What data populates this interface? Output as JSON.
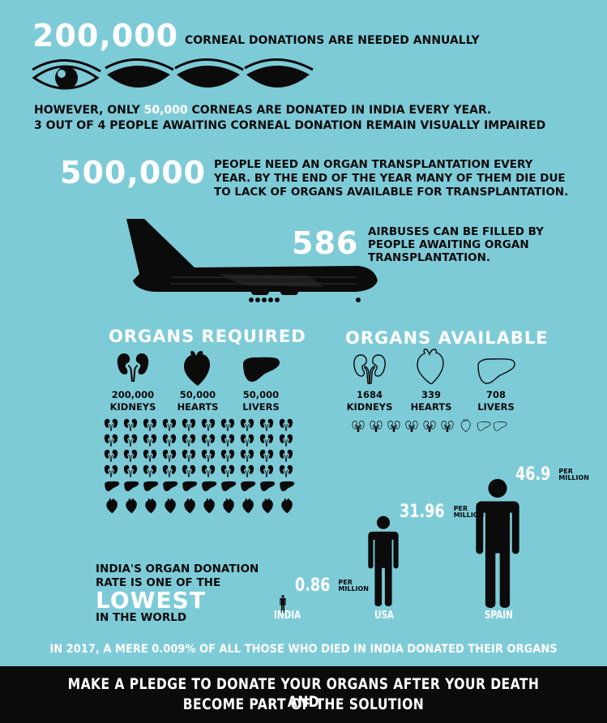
{
  "cornea": {
    "number": "200,000",
    "caption": "CORNEAL DONATIONS ARE NEEDED ANNUALLY",
    "donated_prefix": "HOWEVER, ONLY ",
    "donated_number": "50,000",
    "donated_suffix": " CORNEAS ARE DONATED IN INDIA EVERY YEAR.",
    "impaired": "3 OUT OF 4 PEOPLE AWAITING CORNEAL DONATION REMAIN VISUALLY IMPAIRED"
  },
  "transplant": {
    "number": "500,000",
    "line1": "PEOPLE NEED AN ORGAN TRANSPLANTATION EVERY",
    "line2": "YEAR. BY THE END OF THE YEAR MANY OF THEM DIE DUE",
    "line3": "TO LACK OF ORGANS AVAILABLE FOR TRANSPLANTATION."
  },
  "airbus": {
    "number": "586",
    "line1": "AIRBUSES CAN BE FILLED BY",
    "line2": "PEOPLE AWAITING ORGAN",
    "line3": "TRANSPLANTATION."
  },
  "required": {
    "title": "ORGANS REQUIRED",
    "items": [
      {
        "number": "200,000",
        "label": "KIDNEYS",
        "icon": "kidneys-icon"
      },
      {
        "number": "50,000",
        "label": "HEARTS",
        "icon": "heart-icon"
      },
      {
        "number": "50,000",
        "label": "LIVERS",
        "icon": "liver-icon"
      }
    ]
  },
  "available": {
    "title": "ORGANS AVAILABLE",
    "items": [
      {
        "number": "1684",
        "label": "KIDNEYS",
        "icon": "kidneys-icon"
      },
      {
        "number": "339",
        "label": "HEARTS",
        "icon": "heart-icon"
      },
      {
        "number": "708",
        "label": "LIVERS",
        "icon": "liver-icon"
      }
    ]
  },
  "rate": {
    "line1": "INDIA'S ORGAN DONATION",
    "line2": "RATE IS ONE OF THE",
    "highlight": "LOWEST",
    "line3": "IN THE WORLD",
    "per_top": "PER",
    "per_bottom": "MILLION",
    "countries": [
      {
        "name": "INDIA",
        "value": "0.86",
        "rate": 0.86
      },
      {
        "name": "USA",
        "value": "31.96",
        "rate": 31.96
      },
      {
        "name": "SPAIN",
        "value": "46.9",
        "rate": 46.9
      }
    ]
  },
  "stat_2017": "IN 2017, A MERE 0.009% OF ALL THOSE WHO DIED IN INDIA DONATED THEIR ORGANS",
  "footer": {
    "line1": "MAKE A PLEDGE TO DONATE YOUR ORGANS AFTER YOUR DEATH AND",
    "line2": "BECOME PART OF THE SOLUTION"
  },
  "colors": {
    "background": "#7ecbd8",
    "text_dark": "#0b0b0b",
    "highlight_white": "#ffffff",
    "footer_bg": "#0b0b0b"
  }
}
